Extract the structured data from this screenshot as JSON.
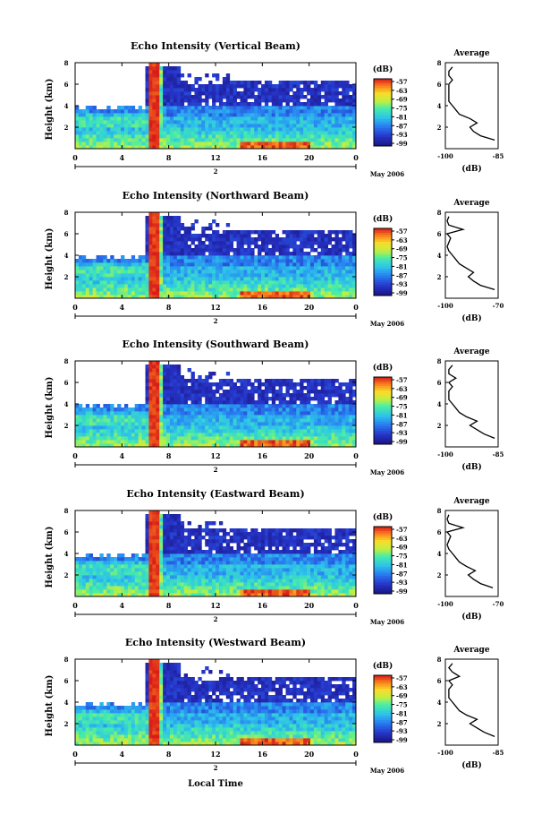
{
  "figure": {
    "xlabel_bottom": "Local Time",
    "date_label": "May 2006",
    "colorbar_unit": "(dB)",
    "average_title": "Average",
    "average_xlabel": "(dB)"
  },
  "chart_data": [
    {
      "type": "heatmap",
      "title": "Echo Intensity (Vertical Beam)",
      "ylabel": "Height (km)",
      "x_ticks": [
        "0",
        "4",
        "8",
        "12",
        "16",
        "20",
        "0"
      ],
      "day_label": "2",
      "y_ticks": [
        "2",
        "4",
        "6",
        "8"
      ],
      "colorbar_ticks": [
        "-57",
        "-63",
        "-69",
        "-75",
        "-81",
        "-87",
        "-93",
        "-99"
      ],
      "profile": {
        "type": "line",
        "xlim": [
          -100,
          -85
        ],
        "x_ticks": [
          "-100",
          "-85"
        ],
        "y_ticks": [
          "2",
          "4",
          "6",
          "8"
        ],
        "heights": [
          0.8,
          1.2,
          1.6,
          2.0,
          2.4,
          2.8,
          3.2,
          3.6,
          4.0,
          4.4,
          4.8,
          5.2,
          5.6,
          6.0,
          6.4,
          6.8,
          7.2,
          7.6
        ],
        "values": [
          -86,
          -90,
          -92,
          -93,
          -91,
          -93,
          -96,
          -97,
          -98,
          -99,
          -99,
          -99,
          -99,
          -99,
          -98,
          -99,
          -99,
          -98
        ]
      }
    },
    {
      "type": "heatmap",
      "title": "Echo Intensity (Northward Beam)",
      "ylabel": "Height (km)",
      "x_ticks": [
        "0",
        "4",
        "8",
        "12",
        "16",
        "20",
        "0"
      ],
      "day_label": "2",
      "y_ticks": [
        "2",
        "4",
        "6",
        "8"
      ],
      "colorbar_ticks": [
        "-57",
        "-63",
        "-69",
        "-75",
        "-81",
        "-87",
        "-93",
        "-99"
      ],
      "profile": {
        "type": "line",
        "xlim": [
          -100,
          -70
        ],
        "x_ticks": [
          "-100",
          "-70"
        ],
        "y_ticks": [
          "2",
          "4",
          "6",
          "8"
        ],
        "heights": [
          0.8,
          1.2,
          1.6,
          2.0,
          2.4,
          2.8,
          3.2,
          3.6,
          4.0,
          4.4,
          4.8,
          5.2,
          5.6,
          6.0,
          6.4,
          6.8,
          7.2,
          7.6
        ],
        "values": [
          -72,
          -80,
          -84,
          -87,
          -84,
          -88,
          -92,
          -94,
          -96,
          -98,
          -99,
          -98,
          -97,
          -99,
          -90,
          -98,
          -99,
          -98
        ]
      }
    },
    {
      "type": "heatmap",
      "title": "Echo Intensity (Southward Beam)",
      "ylabel": "Height (km)",
      "x_ticks": [
        "0",
        "4",
        "8",
        "12",
        "16",
        "20",
        "0"
      ],
      "day_label": "2",
      "y_ticks": [
        "2",
        "4",
        "6",
        "8"
      ],
      "colorbar_ticks": [
        "-57",
        "-63",
        "-69",
        "-75",
        "-81",
        "-87",
        "-93",
        "-99"
      ],
      "profile": {
        "type": "line",
        "xlim": [
          -100,
          -85
        ],
        "x_ticks": [
          "-100",
          "-85"
        ],
        "y_ticks": [
          "2",
          "4",
          "6",
          "8"
        ],
        "heights": [
          0.8,
          1.2,
          1.6,
          2.0,
          2.4,
          2.8,
          3.2,
          3.6,
          4.0,
          4.4,
          4.8,
          5.2,
          5.6,
          6.0,
          6.4,
          6.8,
          7.2,
          7.6
        ],
        "values": [
          -86,
          -89,
          -91,
          -93,
          -91,
          -94,
          -96,
          -97,
          -98,
          -99,
          -99,
          -99,
          -98,
          -99,
          -97,
          -99,
          -99,
          -98
        ]
      }
    },
    {
      "type": "heatmap",
      "title": "Echo Intensity (Eastward Beam)",
      "ylabel": "Height (km)",
      "x_ticks": [
        "0",
        "4",
        "8",
        "12",
        "16",
        "20",
        "0"
      ],
      "day_label": "2",
      "y_ticks": [
        "2",
        "4",
        "6",
        "8"
      ],
      "colorbar_ticks": [
        "-57",
        "-63",
        "-69",
        "-75",
        "-81",
        "-87",
        "-93",
        "-99"
      ],
      "profile": {
        "type": "line",
        "xlim": [
          -100,
          -70
        ],
        "x_ticks": [
          "-100",
          "-70"
        ],
        "y_ticks": [
          "2",
          "4",
          "6",
          "8"
        ],
        "heights": [
          0.8,
          1.2,
          1.6,
          2.0,
          2.4,
          2.8,
          3.2,
          3.6,
          4.0,
          4.4,
          4.8,
          5.2,
          5.6,
          6.0,
          6.4,
          6.8,
          7.2,
          7.6
        ],
        "values": [
          -73,
          -80,
          -84,
          -87,
          -83,
          -88,
          -92,
          -94,
          -96,
          -98,
          -99,
          -98,
          -97,
          -99,
          -90,
          -98,
          -99,
          -98
        ]
      }
    },
    {
      "type": "heatmap",
      "title": "Echo Intensity (Westward Beam)",
      "ylabel": "Height (km)",
      "x_ticks": [
        "0",
        "4",
        "8",
        "12",
        "16",
        "20",
        "0"
      ],
      "day_label": "2",
      "y_ticks": [
        "2",
        "4",
        "6",
        "8"
      ],
      "colorbar_ticks": [
        "-57",
        "-63",
        "-69",
        "-75",
        "-81",
        "-87",
        "-93",
        "-99"
      ],
      "profile": {
        "type": "line",
        "xlim": [
          -100,
          -85
        ],
        "x_ticks": [
          "-100",
          "-85"
        ],
        "y_ticks": [
          "2",
          "4",
          "6",
          "8"
        ],
        "heights": [
          0.8,
          1.2,
          1.6,
          2.0,
          2.4,
          2.8,
          3.2,
          3.6,
          4.0,
          4.4,
          4.8,
          5.2,
          5.6,
          6.0,
          6.4,
          6.8,
          7.2,
          7.6
        ],
        "values": [
          -86,
          -89,
          -91,
          -93,
          -91,
          -94,
          -96,
          -97,
          -98,
          -99,
          -99,
          -99,
          -98,
          -99,
          -96,
          -98,
          -99,
          -98
        ]
      }
    }
  ]
}
